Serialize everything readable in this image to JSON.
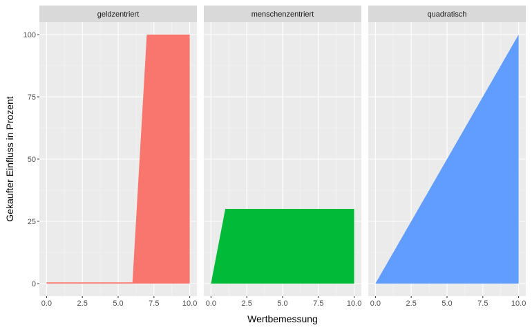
{
  "chart_data": {
    "type": "area",
    "facets": [
      "geldzentriert",
      "menschenzentriert",
      "quadratisch"
    ],
    "xlabel": "Wertbemessung",
    "ylabel": "Gekaufter Einfluss in Prozent",
    "xlim": [
      0,
      10
    ],
    "ylim": [
      0,
      100
    ],
    "x_ticks": [
      0,
      2.5,
      5,
      7.5,
      10
    ],
    "x_tick_labels": [
      "0.0",
      "2.5",
      "5.0",
      "7.5",
      "10.0"
    ],
    "y_ticks": [
      0,
      25,
      50,
      75,
      100
    ],
    "y_tick_labels": [
      "0",
      "25",
      "50",
      "75",
      "100"
    ],
    "grid": true,
    "legend": "none",
    "series": [
      {
        "facet": "geldzentriert",
        "color": "#F8766D",
        "x": [
          0,
          6,
          7,
          10
        ],
        "y": [
          0.5,
          0.5,
          100,
          100
        ]
      },
      {
        "facet": "menschenzentriert",
        "color": "#00BA38",
        "x": [
          0,
          1,
          10
        ],
        "y": [
          0,
          30,
          30
        ]
      },
      {
        "facet": "quadratisch",
        "color": "#619CFF",
        "x": [
          0,
          10
        ],
        "y": [
          0,
          100
        ]
      }
    ]
  }
}
